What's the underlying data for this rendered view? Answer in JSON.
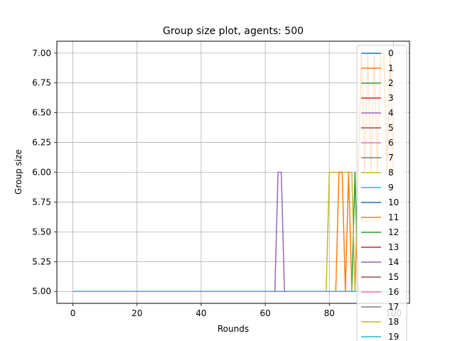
{
  "chart_data": {
    "type": "line",
    "title": "Group size plot, agents: 500",
    "xlabel": "Rounds",
    "ylabel": "Group size",
    "xlim": [
      -5,
      105
    ],
    "ylim": [
      4.9,
      7.1
    ],
    "xticks": [
      0,
      20,
      40,
      60,
      80,
      100
    ],
    "xtick_labels": [
      "0",
      "20",
      "40",
      "60",
      "80",
      "100"
    ],
    "yticks": [
      5.0,
      5.25,
      5.5,
      5.75,
      6.0,
      6.25,
      6.5,
      6.75,
      7.0
    ],
    "ytick_labels": [
      "5.00",
      "5.25",
      "5.50",
      "5.75",
      "6.00",
      "6.25",
      "6.50",
      "6.75",
      "7.00"
    ],
    "grid": true,
    "legend_position": "upper right",
    "series": [
      {
        "name": "0",
        "color": "#1f77b4",
        "x": [
          0,
          100
        ],
        "values": [
          5,
          5
        ]
      },
      {
        "name": "1",
        "color": "#ff7f0e",
        "x": [
          0,
          88,
          89,
          90,
          91,
          92,
          93,
          94,
          95,
          96,
          97,
          98,
          99,
          100
        ],
        "values": [
          5,
          5,
          6,
          7,
          6,
          7,
          6,
          7,
          6,
          7,
          7,
          6,
          7,
          6
        ]
      },
      {
        "name": "2",
        "color": "#2ca02c",
        "x": [
          0,
          87,
          88,
          89,
          100
        ],
        "values": [
          5,
          5,
          6,
          5,
          5
        ]
      },
      {
        "name": "3",
        "color": "#d62728",
        "x": [
          0,
          100
        ],
        "values": [
          5,
          5
        ]
      },
      {
        "name": "4",
        "color": "#9467bd",
        "x": [
          0,
          63,
          64,
          65,
          66,
          100
        ],
        "values": [
          5,
          5,
          6,
          6,
          5,
          5
        ]
      },
      {
        "name": "5",
        "color": "#8c564b",
        "x": [
          0,
          100
        ],
        "values": [
          5,
          5
        ]
      },
      {
        "name": "6",
        "color": "#e377c2",
        "x": [
          0,
          100
        ],
        "values": [
          5,
          5
        ]
      },
      {
        "name": "7",
        "color": "#7f7f7f",
        "x": [
          0,
          100
        ],
        "values": [
          5,
          5
        ]
      },
      {
        "name": "8",
        "color": "#bcbd22",
        "x": [
          0,
          79,
          80,
          87,
          88,
          100
        ],
        "values": [
          5,
          5,
          6,
          6,
          5,
          5
        ]
      },
      {
        "name": "9",
        "color": "#17becf",
        "x": [
          0,
          100
        ],
        "values": [
          5,
          5
        ]
      },
      {
        "name": "10",
        "color": "#1f77b4",
        "x": [
          0,
          100
        ],
        "values": [
          5,
          5
        ]
      },
      {
        "name": "11",
        "color": "#ff7f0e",
        "x": [
          0,
          82,
          83,
          84,
          85,
          86,
          87,
          100
        ],
        "values": [
          5,
          5,
          6,
          6,
          5,
          6,
          5,
          5
        ]
      },
      {
        "name": "12",
        "color": "#2ca02c",
        "x": [
          0,
          100
        ],
        "values": [
          5,
          5
        ]
      },
      {
        "name": "13",
        "color": "#d62728",
        "x": [
          0,
          100
        ],
        "values": [
          5,
          5
        ]
      },
      {
        "name": "14",
        "color": "#9467bd",
        "x": [
          0,
          100
        ],
        "values": [
          5,
          5
        ]
      },
      {
        "name": "15",
        "color": "#8c564b",
        "x": [
          0,
          100
        ],
        "values": [
          5,
          5
        ]
      },
      {
        "name": "16",
        "color": "#e377c2",
        "x": [
          0,
          100
        ],
        "values": [
          5,
          5
        ]
      },
      {
        "name": "17",
        "color": "#7f7f7f",
        "x": [
          0,
          100
        ],
        "values": [
          5,
          5
        ]
      },
      {
        "name": "18",
        "color": "#bcbd22",
        "x": [
          0,
          100
        ],
        "values": [
          5,
          5
        ]
      },
      {
        "name": "19",
        "color": "#17becf",
        "x": [
          0,
          100
        ],
        "values": [
          5,
          5
        ]
      }
    ]
  }
}
